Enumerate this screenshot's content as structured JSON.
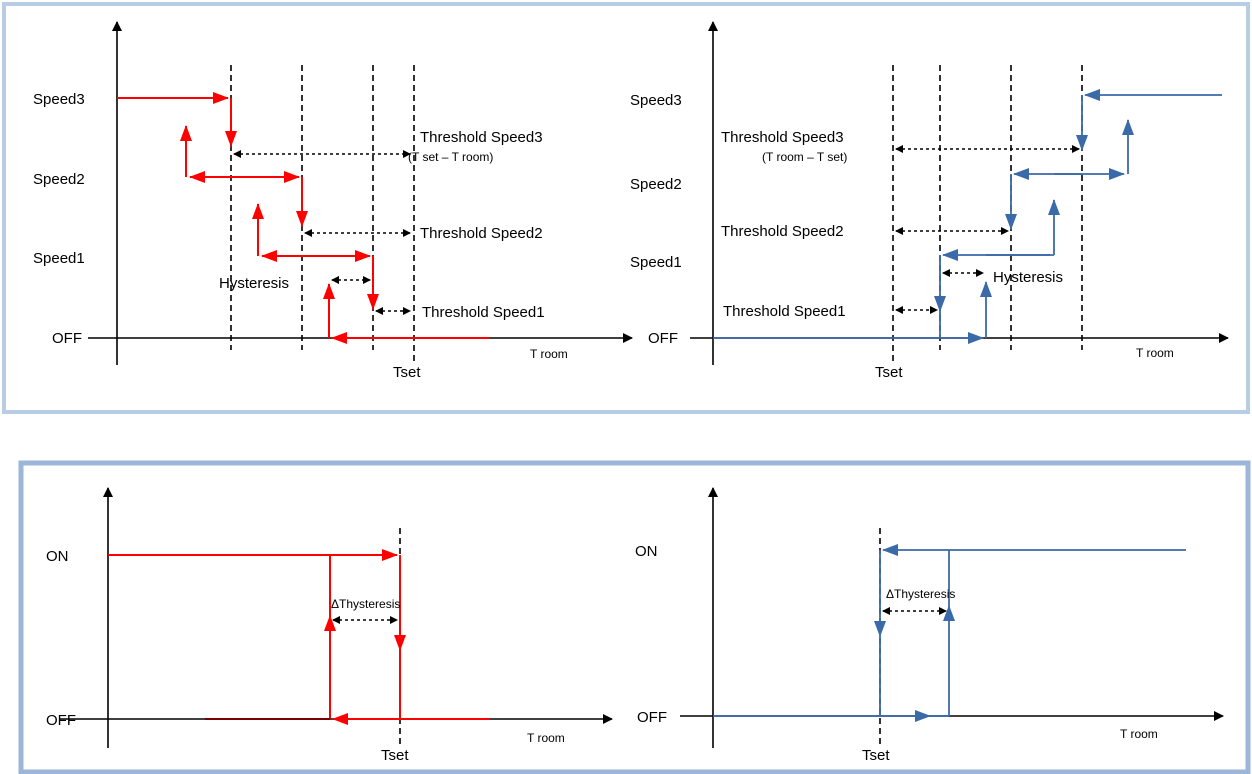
{
  "panels": {
    "top": {
      "left": {
        "levels": [
          "Speed3",
          "Speed2",
          "Speed1",
          "OFF"
        ],
        "threshold3": "Threshold Speed3",
        "threshold3_sub": "(T set – T room)",
        "threshold2": "Threshold Speed2",
        "threshold1": "Threshold Speed1",
        "hysteresis": "Hysteresis",
        "xlabel": "T room",
        "tset": "Tset"
      },
      "right": {
        "levels": [
          "Speed3",
          "Speed2",
          "Speed1",
          "OFF"
        ],
        "threshold3": "Threshold Speed3",
        "threshold3_sub": "(T room – T set)",
        "threshold2": "Threshold Speed2",
        "threshold1": "Threshold Speed1",
        "hysteresis": "Hysteresis",
        "xlabel": "T room",
        "tset": "Tset"
      }
    },
    "bottom": {
      "left": {
        "levels": [
          "ON",
          "OFF"
        ],
        "hysteresis": "ΔThysteresis",
        "xlabel": "T room",
        "tset": "Tset"
      },
      "right": {
        "levels": [
          "ON",
          "OFF"
        ],
        "hysteresis": "ΔThysteresis",
        "xlabel": "T room",
        "tset": "Tset"
      }
    }
  },
  "colors": {
    "heating": "#ff0000",
    "cooling": "#3a6aa8",
    "frame": "#b8cce4"
  }
}
